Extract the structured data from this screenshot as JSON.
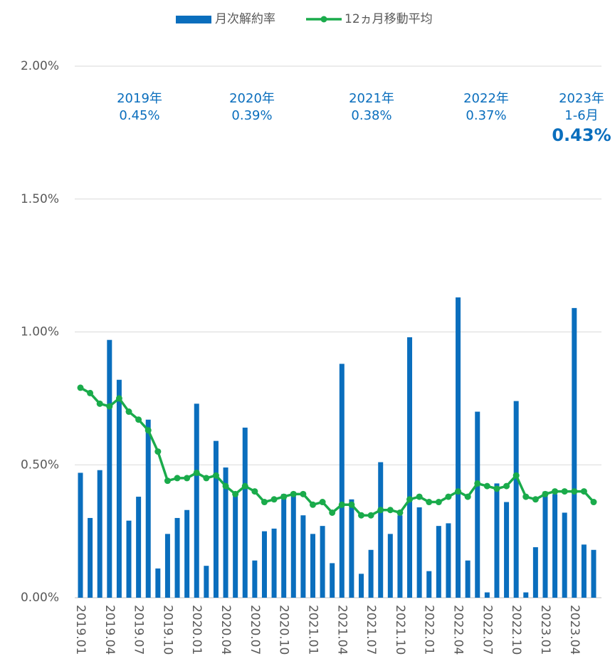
{
  "chart_data": {
    "type": "bar",
    "categories": [
      "2019.01",
      null,
      null,
      "2019.04",
      null,
      null,
      "2019.07",
      null,
      null,
      "2019.10",
      null,
      null,
      "2020.01",
      null,
      null,
      "2020.04",
      null,
      null,
      "2020.07",
      null,
      null,
      "2020.10",
      null,
      null,
      "2021.01",
      null,
      null,
      "2021.04",
      null,
      null,
      "2021.07",
      null,
      null,
      "2021.10",
      null,
      null,
      "2022.01",
      null,
      null,
      "2022.04",
      null,
      null,
      "2022.07",
      null,
      null,
      "2022.10",
      null,
      null,
      "2023.01",
      null,
      null,
      "2023.04",
      null,
      null
    ],
    "series": [
      {
        "name": "月次解約率",
        "type": "bar",
        "color": "#0a6ebd",
        "values": [
          0.47,
          0.3,
          0.48,
          0.97,
          0.82,
          0.29,
          0.38,
          0.67,
          0.11,
          0.24,
          0.3,
          0.33,
          0.73,
          0.12,
          0.59,
          0.49,
          0.4,
          0.64,
          0.14,
          0.25,
          0.26,
          0.39,
          0.39,
          0.31,
          0.24,
          0.27,
          0.13,
          0.88,
          0.37,
          0.09,
          0.18,
          0.51,
          0.24,
          0.31,
          0.98,
          0.34,
          0.1,
          0.27,
          0.28,
          1.13,
          0.14,
          0.7,
          0.02,
          0.43,
          0.36,
          0.74,
          0.02,
          0.19,
          0.4,
          0.39,
          0.32,
          1.09,
          0.2,
          0.18
        ]
      },
      {
        "name": "12ヵ月移動平均",
        "type": "line",
        "color": "#1aab4b",
        "values": [
          0.79,
          0.77,
          0.73,
          0.72,
          0.75,
          0.7,
          0.67,
          0.63,
          0.55,
          0.44,
          0.45,
          0.45,
          0.47,
          0.45,
          0.46,
          0.42,
          0.39,
          0.42,
          0.4,
          0.36,
          0.37,
          0.38,
          0.39,
          0.39,
          0.35,
          0.36,
          0.32,
          0.35,
          0.35,
          0.31,
          0.31,
          0.33,
          0.33,
          0.32,
          0.37,
          0.38,
          0.36,
          0.36,
          0.38,
          0.4,
          0.38,
          0.43,
          0.42,
          0.41,
          0.42,
          0.46,
          0.38,
          0.37,
          0.39,
          0.4,
          0.4,
          0.4,
          0.4,
          0.36
        ]
      }
    ],
    "ylim": [
      0,
      2
    ],
    "yticks": [
      {
        "value": 0,
        "label": "0.00%"
      },
      {
        "value": 0.5,
        "label": "0.50%"
      },
      {
        "value": 1,
        "label": "1.00%"
      },
      {
        "value": 1.5,
        "label": "1.50%"
      },
      {
        "value": 2,
        "label": "2.00%"
      }
    ],
    "grid": true,
    "legend": "top",
    "annotations": [
      {
        "lines": [
          "2019年",
          "0.45%"
        ]
      },
      {
        "lines": [
          "2020年",
          "0.39%"
        ]
      },
      {
        "lines": [
          "2021年",
          "0.38%"
        ]
      },
      {
        "lines": [
          "2022年",
          "0.37%"
        ]
      },
      {
        "lines": [
          "2023年",
          "1-6月",
          "0.43%"
        ]
      }
    ]
  }
}
